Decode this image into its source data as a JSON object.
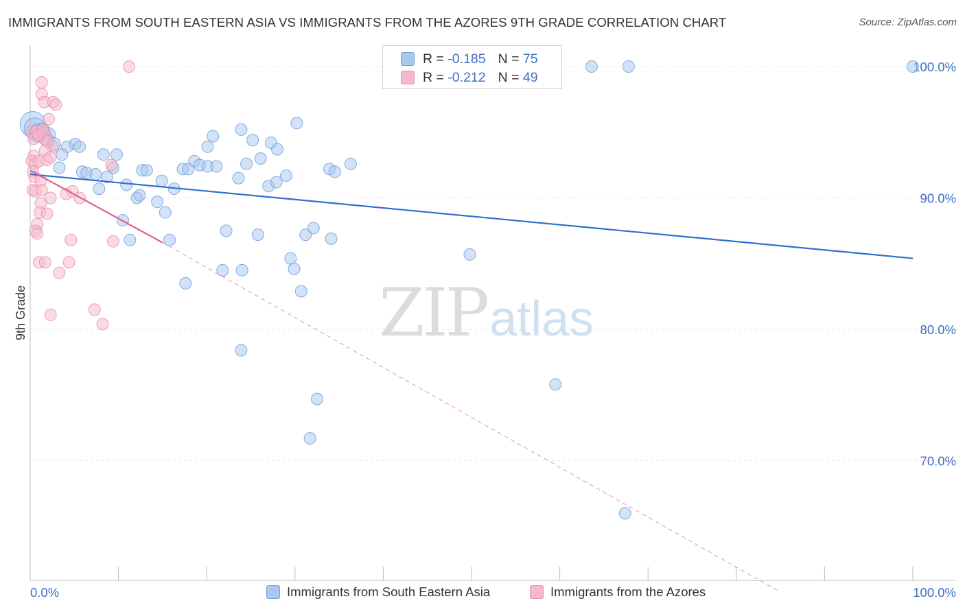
{
  "title": "IMMIGRANTS FROM SOUTH EASTERN ASIA VS IMMIGRANTS FROM THE AZORES 9TH GRADE CORRELATION CHART",
  "source": "Source: ZipAtlas.com",
  "watermark": {
    "zip": "ZIP",
    "atlas": "atlas"
  },
  "stats": [
    {
      "r_label": "R =",
      "r_value": "-0.185",
      "n_label": "N =",
      "n_value": "75"
    },
    {
      "r_label": "R =",
      "r_value": "-0.212",
      "n_label": "N =",
      "n_value": "49"
    }
  ],
  "colors": {
    "blue_fill": "#a8c8f0",
    "blue_stroke": "#6e9fdc",
    "blue_line": "#2f6fcf",
    "pink_fill": "#f6b8cb",
    "pink_stroke": "#e890ac",
    "pink_line": "#e0608e",
    "axis_label": "#3d6fc4",
    "grid": "#e6e6e6"
  },
  "chart_data": {
    "type": "scatter",
    "title": "IMMIGRANTS FROM SOUTH EASTERN ASIA VS IMMIGRANTS FROM THE AZORES 9TH GRADE CORRELATION CHART",
    "xlabel": "",
    "ylabel": "9th Grade",
    "xlim": [
      0,
      100
    ],
    "ylim": [
      60,
      101.5
    ],
    "x_tick_labels": [
      "0.0%",
      "100.0%"
    ],
    "y_ticks": [
      70,
      80,
      90,
      100
    ],
    "y_tick_labels": [
      "70.0%",
      "80.0%",
      "90.0%",
      "100.0%"
    ],
    "grid": "horizontal dashed",
    "legend_position": "bottom",
    "series": [
      {
        "name": "Immigrants from South Eastern Asia",
        "color": "blue",
        "r": -0.185,
        "n": 75,
        "trend": {
          "x": [
            0,
            100
          ],
          "y": [
            91.8,
            85.4
          ],
          "style": "solid"
        },
        "points": [
          [
            0.3,
            95.6,
            2.2
          ],
          [
            0.5,
            95.3,
            1.8
          ],
          [
            0.8,
            94.9,
            1.5
          ],
          [
            1.0,
            95.0,
            1.5
          ],
          [
            1.4,
            95.1,
            1.3
          ],
          [
            2.0,
            94.8,
            1.3
          ],
          [
            1.8,
            94.5,
            1.2
          ],
          [
            2.7,
            94.1,
            1.1
          ],
          [
            4.2,
            93.9,
            1.0
          ],
          [
            5.1,
            94.1,
            1.0
          ],
          [
            5.6,
            93.9,
            1.0
          ],
          [
            3.6,
            93.3,
            1.0
          ],
          [
            3.3,
            92.3,
            1.0
          ],
          [
            8.3,
            93.3,
            1.0
          ],
          [
            9.8,
            93.3,
            1.0
          ],
          [
            9.4,
            92.3,
            1.0
          ],
          [
            5.9,
            92.0,
            1.0
          ],
          [
            6.4,
            91.9,
            1.0
          ],
          [
            7.4,
            91.8,
            1.0
          ],
          [
            8.7,
            91.6,
            1.0
          ],
          [
            7.8,
            90.7,
            1.0
          ],
          [
            10.9,
            91.0,
            1.0
          ],
          [
            12.7,
            92.1,
            1.0
          ],
          [
            13.2,
            92.1,
            1.0
          ],
          [
            14.9,
            91.3,
            1.0
          ],
          [
            16.3,
            90.7,
            1.0
          ],
          [
            12.1,
            90.0,
            1.0
          ],
          [
            12.4,
            90.2,
            1.0
          ],
          [
            14.4,
            89.7,
            1.0
          ],
          [
            15.3,
            88.9,
            1.0
          ],
          [
            10.5,
            88.3,
            1.0
          ],
          [
            11.3,
            86.8,
            1.0
          ],
          [
            15.8,
            86.8,
            1.0
          ],
          [
            17.3,
            92.2,
            1.0
          ],
          [
            17.9,
            92.2,
            1.0
          ],
          [
            18.6,
            92.8,
            1.0
          ],
          [
            19.2,
            92.5,
            1.0
          ],
          [
            20.1,
            93.9,
            1.0
          ],
          [
            20.7,
            94.7,
            1.0
          ],
          [
            20.1,
            92.4,
            1.0
          ],
          [
            21.1,
            92.4,
            1.0
          ],
          [
            22.2,
            87.5,
            1.0
          ],
          [
            21.8,
            84.5,
            1.0
          ],
          [
            24.0,
            84.5,
            1.0
          ],
          [
            23.6,
            91.5,
            1.0
          ],
          [
            23.9,
            95.2,
            1.0
          ],
          [
            24.5,
            92.6,
            1.0
          ],
          [
            25.2,
            94.4,
            1.0
          ],
          [
            26.1,
            93.0,
            1.0
          ],
          [
            25.8,
            87.2,
            1.0
          ],
          [
            27.3,
            94.2,
            1.0
          ],
          [
            28.0,
            93.7,
            1.0
          ],
          [
            27.0,
            90.9,
            1.0
          ],
          [
            27.9,
            91.2,
            1.0
          ],
          [
            29.0,
            91.7,
            1.0
          ],
          [
            30.2,
            95.7,
            1.0
          ],
          [
            31.2,
            87.2,
            1.0
          ],
          [
            32.1,
            87.7,
            1.0
          ],
          [
            29.5,
            85.4,
            1.0
          ],
          [
            29.9,
            84.6,
            1.0
          ],
          [
            30.7,
            82.9,
            1.0
          ],
          [
            33.9,
            92.2,
            1.0
          ],
          [
            34.5,
            92.0,
            1.0
          ],
          [
            34.1,
            86.9,
            1.0
          ],
          [
            36.3,
            92.6,
            1.0
          ],
          [
            17.6,
            83.5,
            1.0
          ],
          [
            23.9,
            78.4,
            1.0
          ],
          [
            32.5,
            74.7,
            1.0
          ],
          [
            31.7,
            71.7,
            1.0
          ],
          [
            49.8,
            85.7,
            1.0
          ],
          [
            59.5,
            75.8,
            1.0
          ],
          [
            63.6,
            100.0,
            1.0
          ],
          [
            67.8,
            100.0,
            1.0
          ],
          [
            100.0,
            100.0,
            1.0
          ],
          [
            67.4,
            66.0,
            1.0
          ]
        ]
      },
      {
        "name": "Immigrants from the Azores",
        "color": "pink",
        "r": -0.212,
        "n": 49,
        "trend": {
          "x": [
            0,
            15
          ],
          "y": [
            92.1,
            86.6
          ],
          "style": "solid",
          "extended": {
            "x": [
              15,
              85
            ],
            "y": [
              86.6,
              60.0
            ],
            "style": "dashed"
          }
        },
        "points": [
          [
            11.2,
            100.0,
            1.0
          ],
          [
            1.3,
            98.8,
            1.0
          ],
          [
            1.3,
            97.9,
            1.0
          ],
          [
            1.6,
            97.3,
            1.0
          ],
          [
            2.6,
            97.3,
            1.0
          ],
          [
            2.9,
            97.1,
            1.0
          ],
          [
            2.1,
            96.0,
            1.0
          ],
          [
            0.3,
            95.0,
            1.2
          ],
          [
            0.8,
            95.0,
            1.2
          ],
          [
            1.5,
            94.9,
            1.2
          ],
          [
            0.4,
            94.5,
            1.0
          ],
          [
            2.6,
            93.9,
            1.0
          ],
          [
            1.7,
            93.6,
            1.0
          ],
          [
            0.4,
            93.2,
            1.0
          ],
          [
            0.2,
            92.8,
            1.0
          ],
          [
            0.5,
            92.6,
            1.0
          ],
          [
            1.0,
            92.8,
            1.0
          ],
          [
            1.9,
            92.9,
            1.0
          ],
          [
            2.3,
            93.1,
            1.0
          ],
          [
            0.3,
            92.0,
            1.0
          ],
          [
            0.5,
            91.6,
            1.0
          ],
          [
            1.2,
            91.3,
            1.0
          ],
          [
            0.3,
            90.6,
            1.0
          ],
          [
            0.6,
            90.5,
            1.0
          ],
          [
            1.3,
            90.6,
            1.0
          ],
          [
            4.1,
            90.3,
            1.0
          ],
          [
            4.8,
            90.5,
            1.0
          ],
          [
            5.6,
            90.0,
            1.0
          ],
          [
            2.3,
            90.0,
            1.0
          ],
          [
            1.2,
            89.6,
            1.0
          ],
          [
            1.1,
            88.9,
            1.0
          ],
          [
            1.9,
            88.8,
            1.0
          ],
          [
            0.8,
            88.0,
            1.0
          ],
          [
            0.6,
            87.5,
            1.0
          ],
          [
            0.8,
            87.3,
            1.0
          ],
          [
            4.6,
            86.8,
            1.0
          ],
          [
            9.4,
            86.7,
            1.0
          ],
          [
            1.0,
            85.1,
            1.0
          ],
          [
            1.7,
            85.1,
            1.0
          ],
          [
            4.4,
            85.1,
            1.0
          ],
          [
            3.3,
            84.3,
            1.0
          ],
          [
            7.3,
            81.5,
            1.0
          ],
          [
            8.2,
            80.4,
            1.0
          ],
          [
            2.3,
            81.1,
            1.0
          ],
          [
            9.2,
            92.5,
            1.0
          ],
          [
            1.4,
            95.2,
            1.0
          ],
          [
            1.6,
            94.5,
            1.0
          ],
          [
            2.0,
            94.3,
            1.0
          ],
          [
            0.9,
            94.8,
            1.0
          ]
        ]
      }
    ]
  }
}
